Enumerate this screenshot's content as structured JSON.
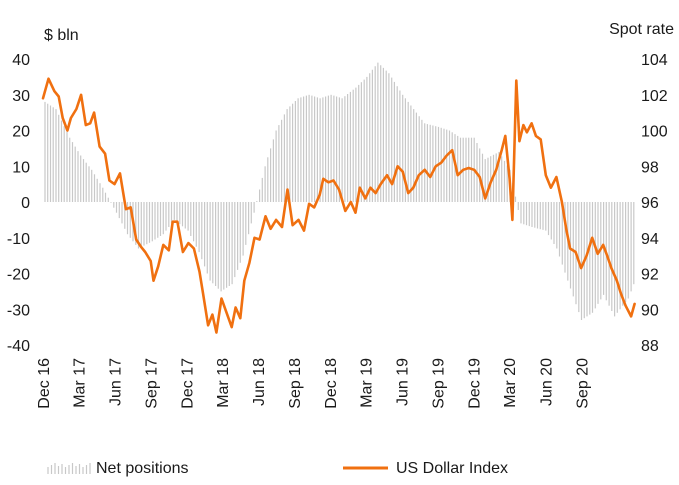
{
  "chart_data": {
    "type": "bar+line",
    "title": "",
    "left_axis": {
      "label": "$ bln",
      "min": -40,
      "max": 40,
      "ticks": [
        40,
        30,
        20,
        10,
        0,
        -10,
        -20,
        -30,
        -40
      ]
    },
    "right_axis": {
      "label": "Spot rate",
      "min": 88,
      "max": 104,
      "ticks": [
        104,
        102,
        100,
        98,
        96,
        94,
        92,
        90,
        88
      ]
    },
    "x_axis": {
      "start": "2016-12-01",
      "end": "2021-01-15",
      "tick_dates": [
        "2016-12-01",
        "2017-03-01",
        "2017-06-01",
        "2017-09-01",
        "2017-12-01",
        "2018-03-01",
        "2018-06-01",
        "2018-09-01",
        "2018-12-01",
        "2019-03-01",
        "2019-06-01",
        "2019-09-01",
        "2019-12-01",
        "2020-03-01",
        "2020-06-01",
        "2020-09-01"
      ],
      "tick_labels": [
        "Dec 16",
        "Mar 17",
        "Jun 17",
        "Sep 17",
        "Dec 17",
        "Mar 18",
        "Jun 18",
        "Sep 18",
        "Dec 18",
        "Mar 19",
        "Jun 19",
        "Sep 19",
        "Dec 19",
        "Mar 20",
        "Jun 20",
        "Sep 20"
      ]
    },
    "legend": {
      "placement": "bottom",
      "net_label": "Net positions",
      "usd_label": "US Dollar Index"
    },
    "colors": {
      "bars": "#c8c8c8",
      "line": "#f07010",
      "text": "#1a1a1a"
    },
    "net_positions": [
      [
        "2016-12-06",
        28
      ],
      [
        "2017-01-03",
        26
      ],
      [
        "2017-02-07",
        18
      ],
      [
        "2017-03-07",
        13
      ],
      [
        "2017-04-04",
        9
      ],
      [
        "2017-05-02",
        4
      ],
      [
        "2017-06-06",
        -3
      ],
      [
        "2017-07-04",
        -9
      ],
      [
        "2017-08-01",
        -13
      ],
      [
        "2017-09-05",
        -11
      ],
      [
        "2017-10-03",
        -9
      ],
      [
        "2017-10-31",
        -5
      ],
      [
        "2017-12-05",
        -8
      ],
      [
        "2018-01-02",
        -14
      ],
      [
        "2018-01-30",
        -22
      ],
      [
        "2018-02-27",
        -25
      ],
      [
        "2018-03-27",
        -23
      ],
      [
        "2018-04-24",
        -15
      ],
      [
        "2018-05-22",
        -3
      ],
      [
        "2018-06-19",
        10
      ],
      [
        "2018-07-17",
        20
      ],
      [
        "2018-08-14",
        26
      ],
      [
        "2018-09-11",
        29
      ],
      [
        "2018-10-09",
        30
      ],
      [
        "2018-11-06",
        29
      ],
      [
        "2018-12-04",
        30
      ],
      [
        "2019-01-01",
        29
      ],
      [
        "2019-02-05",
        32
      ],
      [
        "2019-03-05",
        35
      ],
      [
        "2019-04-02",
        39
      ],
      [
        "2019-04-30",
        36
      ],
      [
        "2019-06-04",
        30
      ],
      [
        "2019-07-02",
        26
      ],
      [
        "2019-07-30",
        22
      ],
      [
        "2019-09-03",
        21
      ],
      [
        "2019-10-01",
        20
      ],
      [
        "2019-10-29",
        18
      ],
      [
        "2019-12-03",
        18
      ],
      [
        "2019-12-31",
        12
      ],
      [
        "2020-02-04",
        14
      ],
      [
        "2020-03-03",
        9
      ],
      [
        "2020-03-31",
        -6
      ],
      [
        "2020-04-28",
        -7
      ],
      [
        "2020-06-02",
        -8
      ],
      [
        "2020-06-30",
        -13
      ],
      [
        "2020-07-28",
        -22
      ],
      [
        "2020-09-01",
        -33
      ],
      [
        "2020-09-29",
        -31
      ],
      [
        "2020-10-27",
        -26
      ],
      [
        "2020-11-24",
        -32
      ],
      [
        "2020-12-29",
        -27
      ],
      [
        "2021-01-12",
        -23
      ]
    ],
    "usd_index": [
      [
        "2016-12-01",
        101.8
      ],
      [
        "2016-12-15",
        102.9
      ],
      [
        "2016-12-30",
        102.2
      ],
      [
        "2017-01-10",
        101.9
      ],
      [
        "2017-01-20",
        100.7
      ],
      [
        "2017-02-01",
        100.0
      ],
      [
        "2017-02-10",
        100.7
      ],
      [
        "2017-02-24",
        101.2
      ],
      [
        "2017-03-08",
        102.0
      ],
      [
        "2017-03-20",
        100.3
      ],
      [
        "2017-03-31",
        100.4
      ],
      [
        "2017-04-10",
        101.0
      ],
      [
        "2017-04-24",
        99.1
      ],
      [
        "2017-05-08",
        98.7
      ],
      [
        "2017-05-19",
        97.2
      ],
      [
        "2017-06-01",
        97.0
      ],
      [
        "2017-06-15",
        97.6
      ],
      [
        "2017-06-30",
        95.6
      ],
      [
        "2017-07-12",
        95.7
      ],
      [
        "2017-07-26",
        93.9
      ],
      [
        "2017-08-07",
        93.5
      ],
      [
        "2017-08-18",
        93.2
      ],
      [
        "2017-09-01",
        92.7
      ],
      [
        "2017-09-08",
        91.6
      ],
      [
        "2017-09-20",
        92.4
      ],
      [
        "2017-10-03",
        93.6
      ],
      [
        "2017-10-17",
        93.3
      ],
      [
        "2017-10-27",
        94.9
      ],
      [
        "2017-11-08",
        94.9
      ],
      [
        "2017-11-22",
        93.2
      ],
      [
        "2017-12-06",
        93.7
      ],
      [
        "2017-12-20",
        93.4
      ],
      [
        "2018-01-03",
        92.1
      ],
      [
        "2018-01-12",
        90.9
      ],
      [
        "2018-01-25",
        89.1
      ],
      [
        "2018-02-05",
        89.7
      ],
      [
        "2018-02-15",
        88.7
      ],
      [
        "2018-02-28",
        90.6
      ],
      [
        "2018-03-13",
        89.8
      ],
      [
        "2018-03-26",
        89.0
      ],
      [
        "2018-04-05",
        90.1
      ],
      [
        "2018-04-17",
        89.5
      ],
      [
        "2018-04-27",
        91.6
      ],
      [
        "2018-05-10",
        92.6
      ],
      [
        "2018-05-23",
        94.0
      ],
      [
        "2018-06-05",
        93.9
      ],
      [
        "2018-06-20",
        95.2
      ],
      [
        "2018-07-03",
        94.5
      ],
      [
        "2018-07-17",
        95.0
      ],
      [
        "2018-08-01",
        94.6
      ],
      [
        "2018-08-15",
        96.7
      ],
      [
        "2018-08-28",
        94.7
      ],
      [
        "2018-09-12",
        95.0
      ],
      [
        "2018-09-26",
        94.4
      ],
      [
        "2018-10-09",
        95.9
      ],
      [
        "2018-10-22",
        95.7
      ],
      [
        "2018-11-05",
        96.4
      ],
      [
        "2018-11-14",
        97.3
      ],
      [
        "2018-11-27",
        97.1
      ],
      [
        "2018-12-10",
        97.2
      ],
      [
        "2018-12-24",
        96.7
      ],
      [
        "2019-01-09",
        95.5
      ],
      [
        "2019-01-23",
        96.0
      ],
      [
        "2019-02-04",
        95.4
      ],
      [
        "2019-02-15",
        96.8
      ],
      [
        "2019-03-01",
        96.2
      ],
      [
        "2019-03-14",
        96.8
      ],
      [
        "2019-03-27",
        96.5
      ],
      [
        "2019-04-09",
        97.0
      ],
      [
        "2019-04-25",
        97.5
      ],
      [
        "2019-05-08",
        97.0
      ],
      [
        "2019-05-22",
        98.0
      ],
      [
        "2019-06-04",
        97.7
      ],
      [
        "2019-06-18",
        96.5
      ],
      [
        "2019-07-01",
        96.8
      ],
      [
        "2019-07-15",
        97.5
      ],
      [
        "2019-07-30",
        97.8
      ],
      [
        "2019-08-13",
        97.4
      ],
      [
        "2019-08-27",
        98.0
      ],
      [
        "2019-09-10",
        98.2
      ],
      [
        "2019-09-24",
        98.6
      ],
      [
        "2019-10-08",
        98.9
      ],
      [
        "2019-10-22",
        97.5
      ],
      [
        "2019-11-05",
        97.8
      ],
      [
        "2019-11-19",
        97.9
      ],
      [
        "2019-12-03",
        97.8
      ],
      [
        "2019-12-17",
        97.4
      ],
      [
        "2019-12-31",
        96.2
      ],
      [
        "2020-01-14",
        97.1
      ],
      [
        "2020-01-28",
        97.8
      ],
      [
        "2020-02-11",
        98.9
      ],
      [
        "2020-02-20",
        99.7
      ],
      [
        "2020-03-02",
        97.3
      ],
      [
        "2020-03-09",
        95.0
      ],
      [
        "2020-03-19",
        102.8
      ],
      [
        "2020-03-27",
        99.4
      ],
      [
        "2020-04-06",
        100.3
      ],
      [
        "2020-04-15",
        99.9
      ],
      [
        "2020-04-27",
        100.4
      ],
      [
        "2020-05-08",
        99.7
      ],
      [
        "2020-05-20",
        99.5
      ],
      [
        "2020-06-02",
        97.5
      ],
      [
        "2020-06-15",
        96.8
      ],
      [
        "2020-06-29",
        97.4
      ],
      [
        "2020-07-13",
        96.0
      ],
      [
        "2020-07-24",
        94.5
      ],
      [
        "2020-08-03",
        93.4
      ],
      [
        "2020-08-17",
        93.2
      ],
      [
        "2020-08-31",
        92.3
      ],
      [
        "2020-09-14",
        93.0
      ],
      [
        "2020-09-28",
        94.0
      ],
      [
        "2020-10-12",
        93.1
      ],
      [
        "2020-10-26",
        93.6
      ],
      [
        "2020-11-05",
        93.0
      ],
      [
        "2020-11-16",
        92.3
      ],
      [
        "2020-11-30",
        91.6
      ],
      [
        "2020-12-10",
        90.9
      ],
      [
        "2020-12-22",
        90.2
      ],
      [
        "2021-01-05",
        89.6
      ],
      [
        "2021-01-14",
        90.3
      ]
    ]
  }
}
